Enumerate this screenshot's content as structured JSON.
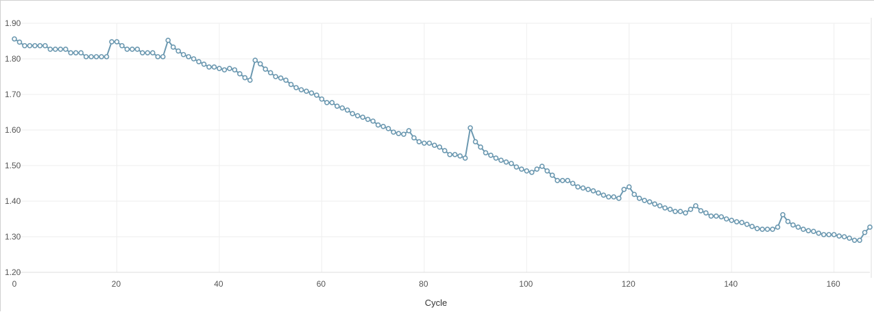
{
  "chart_data": {
    "type": "line",
    "title": "",
    "xlabel": "Cycle",
    "ylabel": "",
    "xlim": [
      0,
      167
    ],
    "ylim": [
      1.2,
      1.9
    ],
    "x_ticks": [
      0,
      20,
      40,
      60,
      80,
      100,
      120,
      140,
      160
    ],
    "x_tick_labels": [
      "0",
      "20",
      "40",
      "60",
      "80",
      "100",
      "120",
      "140",
      "160"
    ],
    "y_ticks": [
      1.2,
      1.3,
      1.4,
      1.5,
      1.6,
      1.7,
      1.8,
      1.9
    ],
    "y_tick_labels": [
      "1.20",
      "1.30",
      "1.40",
      "1.50",
      "1.60",
      "1.70",
      "1.80",
      "1.90"
    ],
    "grid": true,
    "legend": "none",
    "colors": {
      "series": "#6b98b0",
      "marker_fill": "#ffffff",
      "grid": "#eeeeee"
    },
    "series": [
      {
        "x_start": 0,
        "x_step": 1,
        "values": [
          1.856,
          1.847,
          1.837,
          1.837,
          1.837,
          1.837,
          1.837,
          1.827,
          1.827,
          1.827,
          1.827,
          1.817,
          1.817,
          1.817,
          1.806,
          1.806,
          1.806,
          1.806,
          1.806,
          1.848,
          1.848,
          1.837,
          1.827,
          1.827,
          1.827,
          1.817,
          1.817,
          1.817,
          1.806,
          1.806,
          1.852,
          1.833,
          1.822,
          1.812,
          1.806,
          1.8,
          1.792,
          1.785,
          1.777,
          1.777,
          1.773,
          1.769,
          1.773,
          1.769,
          1.758,
          1.747,
          1.74,
          1.796,
          1.786,
          1.771,
          1.761,
          1.75,
          1.746,
          1.74,
          1.728,
          1.719,
          1.713,
          1.709,
          1.704,
          1.698,
          1.687,
          1.677,
          1.677,
          1.667,
          1.662,
          1.656,
          1.646,
          1.64,
          1.636,
          1.63,
          1.625,
          1.614,
          1.61,
          1.604,
          1.594,
          1.59,
          1.588,
          1.598,
          1.578,
          1.567,
          1.563,
          1.563,
          1.557,
          1.552,
          1.542,
          1.531,
          1.531,
          1.527,
          1.521,
          1.606,
          1.567,
          1.552,
          1.536,
          1.529,
          1.521,
          1.515,
          1.51,
          1.506,
          1.496,
          1.49,
          1.485,
          1.481,
          1.49,
          1.498,
          1.485,
          1.473,
          1.458,
          1.458,
          1.458,
          1.45,
          1.44,
          1.437,
          1.433,
          1.429,
          1.423,
          1.417,
          1.412,
          1.412,
          1.408,
          1.433,
          1.44,
          1.419,
          1.408,
          1.402,
          1.398,
          1.392,
          1.387,
          1.381,
          1.377,
          1.371,
          1.371,
          1.367,
          1.377,
          1.387,
          1.373,
          1.367,
          1.358,
          1.358,
          1.356,
          1.35,
          1.346,
          1.342,
          1.34,
          1.335,
          1.329,
          1.323,
          1.321,
          1.321,
          1.321,
          1.327,
          1.362,
          1.343,
          1.333,
          1.327,
          1.321,
          1.317,
          1.315,
          1.31,
          1.306,
          1.306,
          1.306,
          1.302,
          1.3,
          1.296,
          1.29,
          1.29,
          1.312,
          1.327
        ]
      }
    ]
  }
}
